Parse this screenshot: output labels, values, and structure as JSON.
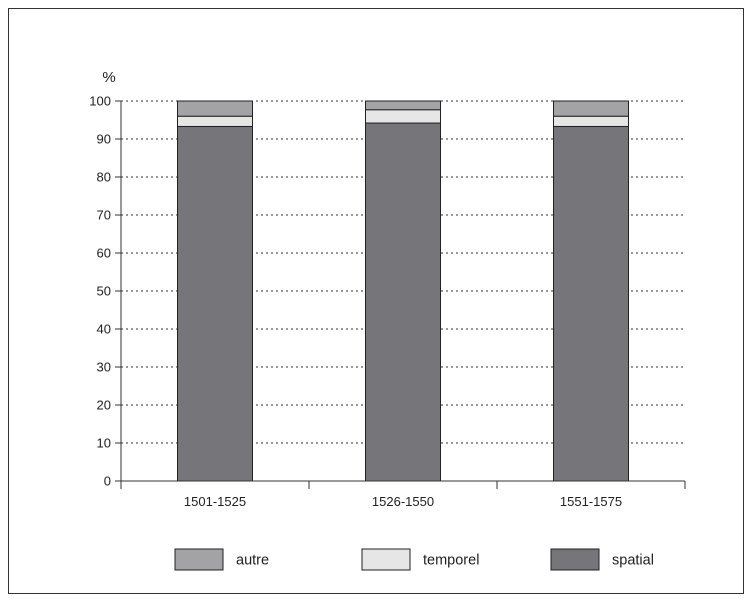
{
  "chart_data": {
    "type": "bar",
    "stacked": true,
    "ylabel": "%",
    "ylim": [
      0,
      100
    ],
    "yticks": [
      "0",
      "10",
      "20",
      "30",
      "40",
      "50",
      "60",
      "70",
      "80",
      "90",
      "100"
    ],
    "grid": true,
    "legend_position": "bottom",
    "categories": [
      "1501-1525",
      "1526-1550",
      "1551-1575"
    ],
    "series": [
      {
        "name": "spatial",
        "color": "#75757a",
        "values": [
          93.3,
          94.2,
          93.3
        ]
      },
      {
        "name": "temporel",
        "color": "#e6e6e6",
        "values": [
          2.7,
          3.5,
          2.7
        ]
      },
      {
        "name": "autre",
        "color": "#a3a3a6",
        "values": [
          4.0,
          2.3,
          4.0
        ]
      }
    ],
    "legend_order": [
      "autre",
      "temporel",
      "spatial"
    ]
  }
}
